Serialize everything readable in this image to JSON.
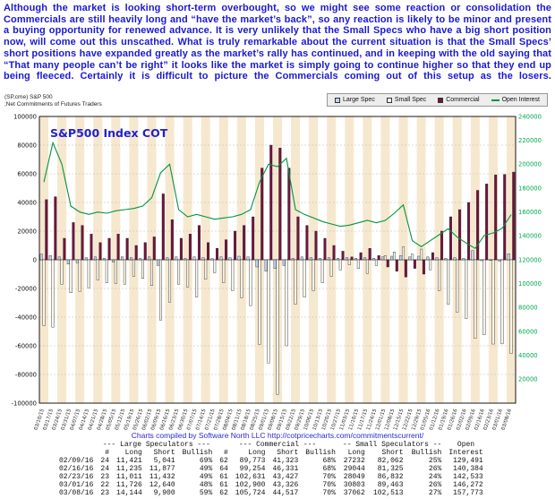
{
  "commentary": "Although the market is looking short-term overbought, so we might see some reaction or consolidation the Commercials are still heavily long and “have the market’s back”, so any reaction is likely to be minor and present a buying opportunity for renewed advance. It is very unlikely that the Small Specs who have a big short position now, will come out this unscathed. What is truly remarkable about the current situation is that the Small Specs’ short positions have expanded greatly as the market’s rally has continued, and in keeping with the old saying that “That many people can’t be right” it looks like the market is simply going to continue higher so that they end up being fleeced. Certainly it is difficult to picture the Commercials coming out of this setup as the losers.",
  "chart_header": {
    "line1": "(SP,cme) S&P 500",
    "line2": ";Net Commitments of Futures Traders"
  },
  "legend": {
    "items": [
      {
        "label": "Large Spec"
      },
      {
        "label": "Small Spec"
      },
      {
        "label": "Commercial"
      },
      {
        "label": "Open Interest"
      }
    ]
  },
  "credit": {
    "prefix": "Charts compiled by Software North LLC",
    "url": "http://cotpricecharts.com/commitmentscurrent/"
  },
  "chart_data": {
    "type": "bar",
    "inside_title": "S&P500 Index COT",
    "title": "Net Commitments of Futures Traders",
    "xlabel": "",
    "ylabel": "",
    "legend_position": "top-right",
    "grid": "horizontal-dashed",
    "left_axis": {
      "min": -100000,
      "max": 100000,
      "step": 20000
    },
    "right_axis": {
      "min": 0,
      "max": 240000,
      "step": 20000,
      "label_min": 20000
    },
    "categories": [
      "03/10/15",
      "03/17/15",
      "03/24/15",
      "03/31/15",
      "04/07/15",
      "04/14/15",
      "04/21/15",
      "04/28/15",
      "05/05/15",
      "05/12/15",
      "05/19/15",
      "05/26/15",
      "06/02/15",
      "06/09/15",
      "06/16/15",
      "06/23/15",
      "06/30/15",
      "07/07/15",
      "07/14/15",
      "07/21/15",
      "07/28/15",
      "08/04/15",
      "08/11/15",
      "08/18/15",
      "08/25/15",
      "09/01/15",
      "09/08/15",
      "09/15/15",
      "09/22/15",
      "09/29/15",
      "10/06/15",
      "10/13/15",
      "10/20/15",
      "10/27/15",
      "11/03/15",
      "11/10/15",
      "11/17/15",
      "11/24/15",
      "12/01/15",
      "12/08/15",
      "12/15/15",
      "12/22/15",
      "12/29/15",
      "01/05/16",
      "01/12/16",
      "01/19/16",
      "01/26/16",
      "02/02/16",
      "02/09/16",
      "02/16/16",
      "02/23/16",
      "03/01/16",
      "03/08/16"
    ],
    "series": {
      "large_spec": [
        4000,
        3000,
        2000,
        -3000,
        -2000,
        1500,
        2000,
        1000,
        -1500,
        2000,
        1500,
        1000,
        2000,
        -4000,
        1500,
        2000,
        1000,
        2000,
        1500,
        1000,
        2000,
        1500,
        2500,
        2000,
        -5000,
        -8000,
        -6000,
        -4000,
        1000,
        2000,
        1500,
        1000,
        1500,
        1000,
        1500,
        1000,
        1500,
        1000,
        2000,
        2500,
        3000,
        2000,
        2500,
        2000,
        1500,
        1000,
        1500,
        1000,
        6380,
        -642,
        -421,
        -914,
        4244
      ],
      "small_spec": [
        -46000,
        -47000,
        -17000,
        -23000,
        -22000,
        -19500,
        -14000,
        -16000,
        -16500,
        -17000,
        -11500,
        -13000,
        -18000,
        -42000,
        -29500,
        -17000,
        -19000,
        -26000,
        -13500,
        -9000,
        -16000,
        -21500,
        -26500,
        -32000,
        -59000,
        -72000,
        -94000,
        -60000,
        -31000,
        -26000,
        -21500,
        -16000,
        -11500,
        -7000,
        -3500,
        -6000,
        -9500,
        -4000,
        3000,
        5500,
        9000,
        4000,
        7500,
        -7000,
        -21500,
        -31000,
        -36500,
        -41000,
        -54830,
        -52281,
        -58783,
        -58660,
        -65451
      ],
      "commercial": [
        42000,
        44000,
        15000,
        26000,
        24000,
        18000,
        12000,
        15000,
        18000,
        15000,
        10000,
        12000,
        16000,
        46000,
        28000,
        15000,
        18000,
        24000,
        12000,
        8000,
        14000,
        20000,
        24000,
        30000,
        64000,
        80000,
        78000,
        64000,
        30000,
        24000,
        20000,
        15000,
        10000,
        6000,
        2000,
        5000,
        8000,
        3000,
        -5000,
        -8000,
        -12000,
        -6000,
        -10000,
        5000,
        20000,
        30000,
        35000,
        40000,
        48450,
        52923,
        59204,
        59574,
        61207
      ],
      "open_interest": [
        185000,
        218000,
        200000,
        165000,
        160000,
        158000,
        160000,
        159000,
        161000,
        162000,
        163000,
        165000,
        172000,
        193000,
        200000,
        162000,
        156000,
        158000,
        156000,
        154000,
        155000,
        156000,
        158000,
        162000,
        185000,
        200000,
        198000,
        205000,
        162000,
        158000,
        155000,
        152000,
        150000,
        148000,
        149000,
        151000,
        153000,
        151000,
        153000,
        159000,
        166000,
        136000,
        131000,
        136000,
        141000,
        146000,
        139000,
        134000,
        129491,
        140384,
        142533,
        146272,
        157773
      ]
    },
    "colors": {
      "large_spec": "#c5d3ec",
      "small_spec": "#f8f5e9",
      "commercial": "#76123f",
      "open_interest": "#009442",
      "right_axis_text": "#00a84f",
      "stripe": "#f6e8cf",
      "title": "#2222cc"
    }
  },
  "table": {
    "group_headers": [
      {
        "label": "",
        "span": 1
      },
      {
        "label": "--- Large Speculators ---",
        "span": 4
      },
      {
        "label": "--- Commercial ---",
        "span": 4
      },
      {
        "label": "-- Small Speculators --",
        "span": 3
      },
      {
        "label": "Open",
        "span": 1
      }
    ],
    "sub_headers": [
      "",
      "#",
      "Long",
      "Short",
      "Bullish",
      "#",
      "Long",
      "Short",
      "Bullish",
      "Long",
      "Short",
      "Bullish",
      "Interest"
    ],
    "rows": [
      [
        "02/09/16",
        "24",
        "11,421",
        "5,041",
        "69%",
        "62",
        "89,773",
        "41,323",
        "68%",
        "27232",
        "82,062",
        "25%",
        "129,491"
      ],
      [
        "02/16/16",
        "24",
        "11,235",
        "11,877",
        "49%",
        "64",
        "99,254",
        "46,331",
        "68%",
        "29044",
        "81,325",
        "26%",
        "140,384"
      ],
      [
        "02/23/16",
        "23",
        "11,011",
        "11,432",
        "49%",
        "61",
        "102,631",
        "43,427",
        "70%",
        "28049",
        "86,832",
        "24%",
        "142,533"
      ],
      [
        "03/01/16",
        "22",
        "11,726",
        "12,640",
        "48%",
        "61",
        "102,900",
        "43,326",
        "70%",
        "30803",
        "89,463",
        "26%",
        "146,272"
      ],
      [
        "03/08/16",
        "23",
        "14,144",
        "9,900",
        "59%",
        "62",
        "105,724",
        "44,517",
        "70%",
        "37062",
        "102,513",
        "27%",
        "157,773"
      ]
    ]
  }
}
